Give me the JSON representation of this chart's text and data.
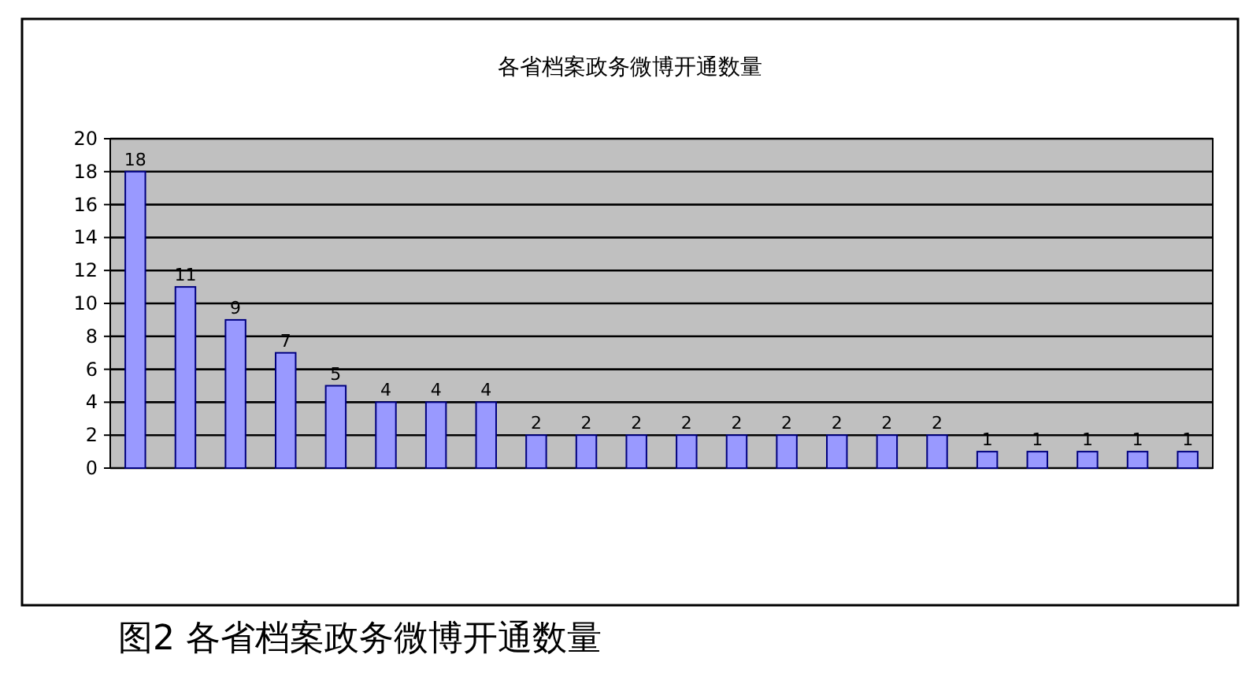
{
  "chart_data": {
    "type": "bar",
    "title": "各省档案政务微博开通数量",
    "categories": [
      null,
      null,
      null,
      null,
      null,
      null,
      null,
      null,
      null,
      null,
      null,
      null,
      null,
      null,
      null,
      null,
      null,
      null,
      null,
      null,
      null,
      null
    ],
    "values": [
      18,
      11,
      9,
      7,
      5,
      4,
      4,
      4,
      2,
      2,
      2,
      2,
      2,
      2,
      2,
      2,
      2,
      1,
      1,
      1,
      1,
      1
    ],
    "color": "#9999ff",
    "ylim": [
      0,
      20
    ],
    "yticks": [
      0,
      2,
      4,
      6,
      8,
      10,
      12,
      14,
      16,
      18,
      20
    ],
    "grid": "y",
    "data_labels": true,
    "annotations": [
      "图2 各省档案政务微博开通数量"
    ]
  }
}
